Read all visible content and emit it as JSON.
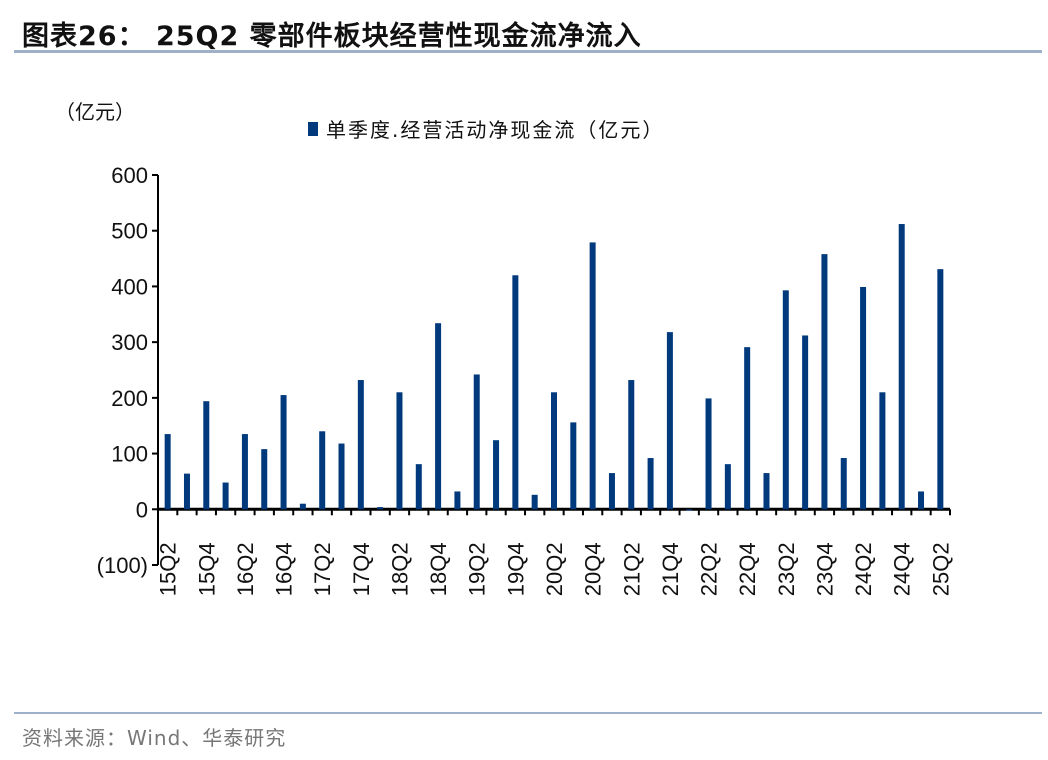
{
  "title": "图表26：  25Q2 零部件板块经营性现金流净流入",
  "source": "资料来源：Wind、华泰研究",
  "chart_data": {
    "type": "bar",
    "title": "图表26：  25Q2 零部件板块经营性现金流净流入",
    "ylabel": "（亿元）",
    "xlabel": "",
    "ylim": [
      -100,
      600
    ],
    "yticks": [
      600,
      500,
      400,
      300,
      200,
      100,
      0,
      -100
    ],
    "ytick_labels": [
      "600",
      "500",
      "400",
      "300",
      "200",
      "100",
      "0",
      "(100)"
    ],
    "legend_position": "top",
    "grid": false,
    "color": "#003a7d",
    "categories": [
      "15Q2",
      "15Q3",
      "15Q4",
      "16Q1",
      "16Q2",
      "16Q3",
      "16Q4",
      "17Q1",
      "17Q2",
      "17Q3",
      "17Q4",
      "18Q1",
      "18Q2",
      "18Q3",
      "18Q4",
      "19Q1",
      "19Q2",
      "19Q3",
      "19Q4",
      "20Q1",
      "20Q2",
      "20Q3",
      "20Q4",
      "21Q1",
      "21Q2",
      "21Q3",
      "21Q4",
      "22Q1",
      "22Q2",
      "22Q3",
      "22Q4",
      "23Q1",
      "23Q2",
      "23Q3",
      "23Q4",
      "24Q1",
      "24Q2",
      "24Q3",
      "24Q4",
      "25Q1",
      "25Q2"
    ],
    "shown_category_labels": [
      "15Q2",
      "15Q4",
      "16Q2",
      "16Q4",
      "17Q2",
      "17Q4",
      "18Q2",
      "18Q4",
      "19Q2",
      "19Q4",
      "20Q2",
      "20Q4",
      "21Q2",
      "21Q4",
      "22Q2",
      "22Q4",
      "23Q2",
      "23Q4",
      "24Q2",
      "24Q4",
      "25Q2"
    ],
    "series": [
      {
        "name": "单季度.经营活动净现金流（亿元）",
        "values": [
          135,
          64,
          194,
          48,
          135,
          108,
          205,
          10,
          140,
          118,
          232,
          4,
          210,
          81,
          334,
          32,
          242,
          124,
          420,
          26,
          210,
          156,
          479,
          65,
          232,
          92,
          318,
          -2,
          199,
          81,
          291,
          65,
          393,
          312,
          458,
          92,
          399,
          210,
          512,
          32,
          431
        ]
      }
    ]
  }
}
